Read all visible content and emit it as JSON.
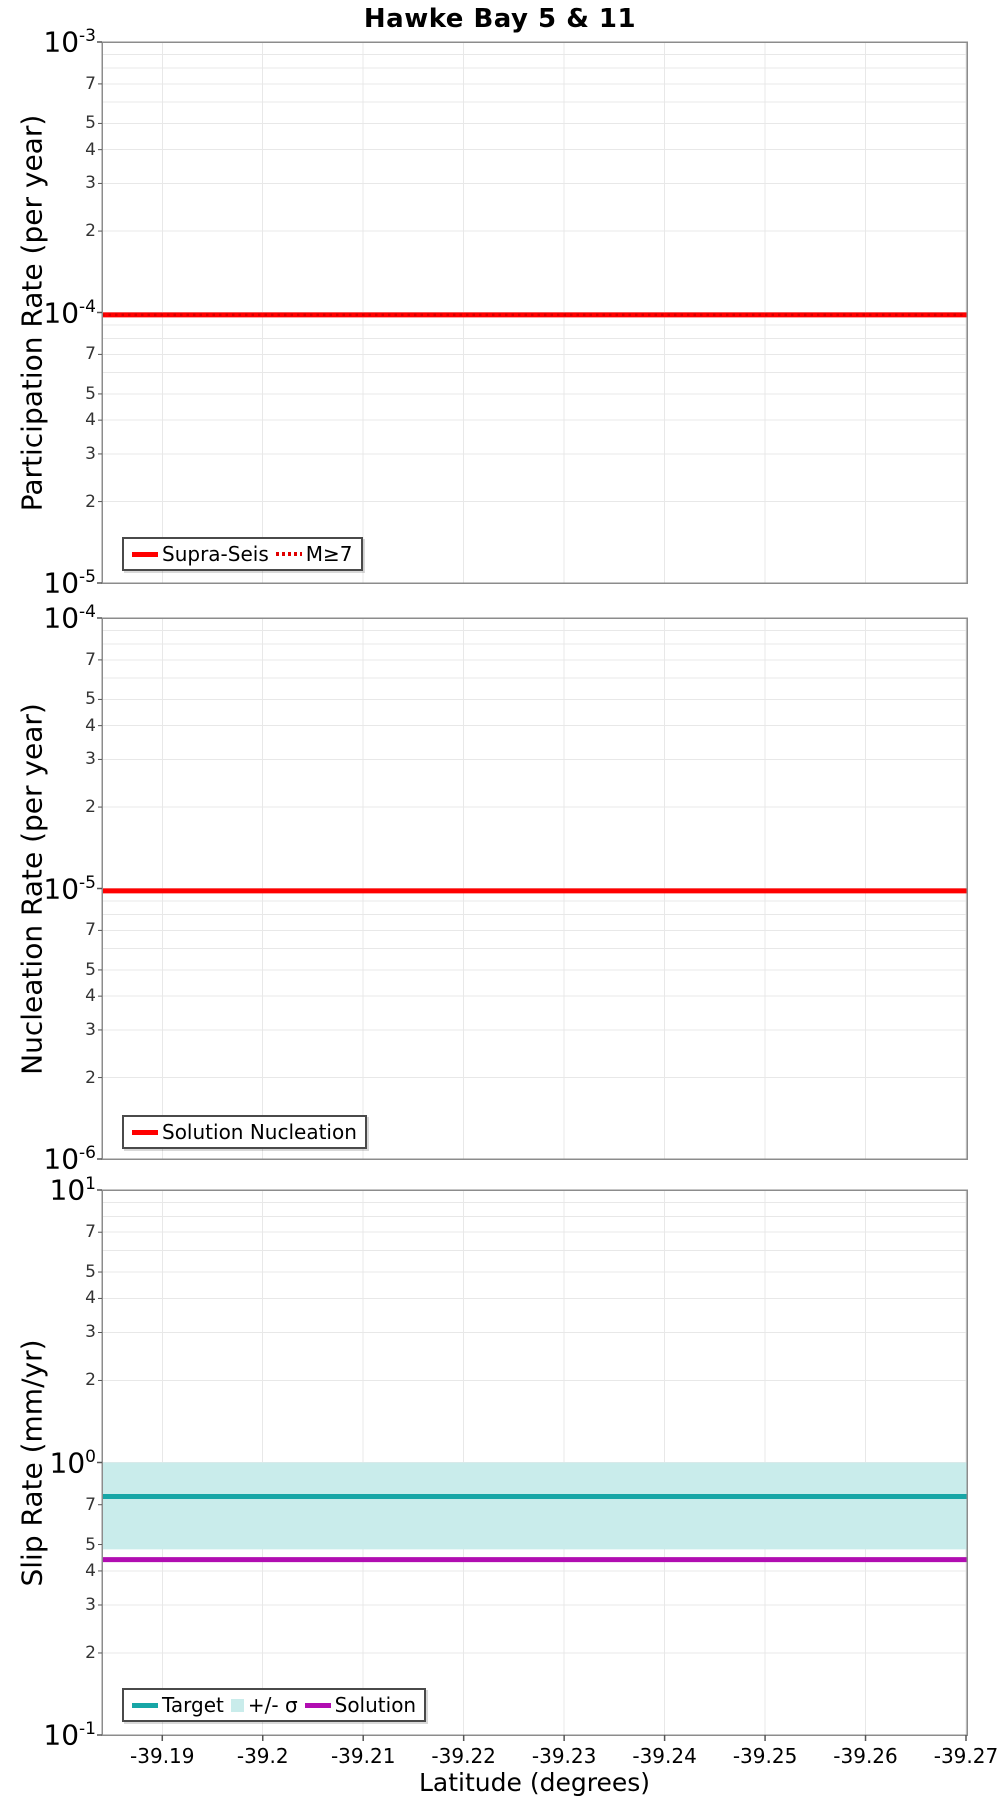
{
  "chart_data": {
    "type": "line",
    "title": "Hawke Bay 5 & 11",
    "x": {
      "label": "Latitude (degrees)",
      "xlim": [
        -39.184,
        -39.2701
      ],
      "ticks": [
        {
          "value": -39.19,
          "label": "-39.19"
        },
        {
          "value": -39.2,
          "label": "-39.2"
        },
        {
          "value": -39.21,
          "label": "-39.21"
        },
        {
          "value": -39.22,
          "label": "-39.22"
        },
        {
          "value": -39.23,
          "label": "-39.23"
        },
        {
          "value": -39.24,
          "label": "-39.24"
        },
        {
          "value": -39.25,
          "label": "-39.25"
        },
        {
          "value": -39.26,
          "label": "-39.26"
        },
        {
          "value": -39.27,
          "label": "-39.27"
        }
      ]
    },
    "y_minor_tick_labels": [
      7,
      5,
      4,
      3,
      2
    ],
    "y_minor_grid": [
      9,
      8,
      7,
      6,
      5,
      4,
      3,
      2
    ],
    "panels": [
      {
        "name": "participation-rate",
        "ylabel": "Participation Rate (per year)",
        "y_top_exp": -3,
        "y_bottom_exp": -5,
        "series": [
          {
            "name": "Supra-Seis",
            "style": "line",
            "color": "#FF0000",
            "width": 5,
            "value": 9.8e-05
          },
          {
            "name": "M≥7",
            "style": "dotted",
            "color": "#D40000",
            "width": 2.5,
            "value": 9.8e-05
          }
        ],
        "legend": [
          {
            "label": "Supra-Seis",
            "swatch": "line",
            "color": "#FF0000"
          },
          {
            "label": "M≥7",
            "swatch": "dotted",
            "color": "#E00000"
          }
        ]
      },
      {
        "name": "nucleation-rate",
        "ylabel": "Nucleation Rate (per year)",
        "y_top_exp": -4,
        "y_bottom_exp": -6,
        "series": [
          {
            "name": "Solution Nucleation",
            "style": "line",
            "color": "#FF0000",
            "width": 5,
            "value": 9.8e-06
          }
        ],
        "legend": [
          {
            "label": "Solution Nucleation",
            "swatch": "line",
            "color": "#FF0000"
          }
        ]
      },
      {
        "name": "slip-rate",
        "ylabel": "Slip Rate (mm/yr)",
        "y_top_exp": 1,
        "y_bottom_exp": -1,
        "series": [
          {
            "name": "+/- σ",
            "style": "band",
            "color": "#C9ECEB",
            "band": [
              0.48,
              1.0
            ]
          },
          {
            "name": "Target",
            "style": "line",
            "color": "#17A6A6",
            "width": 5,
            "value": 0.75
          },
          {
            "name": "Solution",
            "style": "line",
            "color": "#B10DB1",
            "width": 5,
            "value": 0.44
          }
        ],
        "legend": [
          {
            "label": "Target",
            "swatch": "line",
            "color": "#17A6A6"
          },
          {
            "label": "+/- σ",
            "swatch": "patch",
            "color": "#C9ECEB"
          },
          {
            "label": "Solution",
            "swatch": "line",
            "color": "#B10DB1"
          }
        ]
      }
    ],
    "colors": {
      "grid": "#E8E8E8",
      "plot_border": "#8C8C8C",
      "tick": "#555555"
    }
  }
}
